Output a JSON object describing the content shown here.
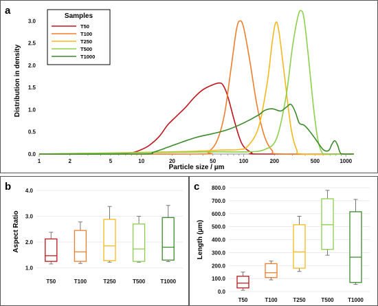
{
  "chart_data": [
    {
      "panel": "a",
      "type": "line",
      "xlabel": "Particle size / µm",
      "ylabel": "Distribution in density",
      "xscale": "log",
      "xlim": [
        1,
        1200
      ],
      "ylim": [
        0,
        3.3
      ],
      "x_ticks": [
        "1",
        "2",
        "5",
        "10",
        "20",
        "50",
        "100",
        "200",
        "500",
        "1000"
      ],
      "y_ticks": [
        "0.0",
        "0.5",
        "1.0",
        "1.5",
        "2.0",
        "2.5",
        "3.0"
      ],
      "legend": {
        "title": "Samples",
        "placement": "top-left"
      },
      "series": [
        {
          "name": "T50",
          "color": "#c0141c",
          "points": [
            [
              1,
              0
            ],
            [
              5,
              0
            ],
            [
              8,
              0.03
            ],
            [
              10,
              0.1
            ],
            [
              12,
              0.2
            ],
            [
              15,
              0.4
            ],
            [
              18,
              0.65
            ],
            [
              22,
              0.85
            ],
            [
              27,
              1.05
            ],
            [
              33,
              1.28
            ],
            [
              40,
              1.45
            ],
            [
              50,
              1.56
            ],
            [
              58,
              1.6
            ],
            [
              63,
              1.55
            ],
            [
              70,
              1.3
            ],
            [
              80,
              0.8
            ],
            [
              90,
              0.4
            ],
            [
              100,
              0.17
            ],
            [
              120,
              0.03
            ],
            [
              140,
              0
            ],
            [
              1200,
              0
            ]
          ]
        },
        {
          "name": "T100",
          "color": "#f07d2a",
          "points": [
            [
              1,
              0
            ],
            [
              35,
              0
            ],
            [
              45,
              0.05
            ],
            [
              55,
              0.3
            ],
            [
              65,
              0.9
            ],
            [
              75,
              1.9
            ],
            [
              85,
              2.8
            ],
            [
              92,
              3.0
            ],
            [
              100,
              2.85
            ],
            [
              115,
              2.1
            ],
            [
              135,
              1.1
            ],
            [
              160,
              0.4
            ],
            [
              190,
              0.08
            ],
            [
              230,
              0
            ],
            [
              1200,
              0
            ]
          ]
        },
        {
          "name": "T250",
          "color": "#f5b81c",
          "points": [
            [
              1,
              0
            ],
            [
              20,
              0.05
            ],
            [
              40,
              0.07
            ],
            [
              60,
              0.09
            ],
            [
              90,
              0.1
            ],
            [
              110,
              0.18
            ],
            [
              140,
              0.6
            ],
            [
              170,
              1.6
            ],
            [
              190,
              2.5
            ],
            [
              205,
              2.95
            ],
            [
              220,
              2.8
            ],
            [
              250,
              1.8
            ],
            [
              290,
              0.6
            ],
            [
              330,
              0.1
            ],
            [
              380,
              0
            ],
            [
              1200,
              0
            ]
          ]
        },
        {
          "name": "T500",
          "color": "#8cd04b",
          "points": [
            [
              1,
              0
            ],
            [
              20,
              0.04
            ],
            [
              60,
              0.05
            ],
            [
              110,
              0.05
            ],
            [
              160,
              0.1
            ],
            [
              210,
              0.35
            ],
            [
              260,
              1.3
            ],
            [
              300,
              2.4
            ],
            [
              340,
              3.1
            ],
            [
              365,
              3.23
            ],
            [
              390,
              3.05
            ],
            [
              430,
              2.2
            ],
            [
              480,
              1.1
            ],
            [
              530,
              0.35
            ],
            [
              580,
              0.05
            ],
            [
              650,
              0
            ],
            [
              1200,
              0
            ]
          ]
        },
        {
          "name": "T1000",
          "color": "#3a8a2a",
          "points": [
            [
              1,
              0
            ],
            [
              10,
              0
            ],
            [
              13,
              0.04
            ],
            [
              18,
              0.15
            ],
            [
              25,
              0.27
            ],
            [
              35,
              0.38
            ],
            [
              50,
              0.46
            ],
            [
              70,
              0.55
            ],
            [
              100,
              0.7
            ],
            [
              140,
              0.88
            ],
            [
              160,
              0.98
            ],
            [
              190,
              1.02
            ],
            [
              230,
              0.97
            ],
            [
              260,
              1.05
            ],
            [
              290,
              1.12
            ],
            [
              320,
              0.95
            ],
            [
              350,
              0.7
            ],
            [
              390,
              0.65
            ],
            [
              430,
              0.55
            ],
            [
              500,
              0.35
            ],
            [
              600,
              0.1
            ],
            [
              680,
              0.08
            ],
            [
              730,
              0.22
            ],
            [
              780,
              0.3
            ],
            [
              830,
              0.2
            ],
            [
              880,
              0.03
            ],
            [
              950,
              0
            ],
            [
              1200,
              0
            ]
          ]
        }
      ]
    },
    {
      "panel": "b",
      "type": "boxplot",
      "xlabel": "",
      "ylabel": "Aspect Ratio",
      "ylim": [
        0.8,
        4.0
      ],
      "y_ticks": [
        "1.0",
        "2.0",
        "3.0",
        "4.0"
      ],
      "categories": [
        "T50",
        "T100",
        "T250",
        "T500",
        "T1000"
      ],
      "boxes": [
        {
          "name": "T50",
          "color": "#c0141c",
          "min": 1.15,
          "q1": 1.25,
          "median": 1.47,
          "q3": 2.12,
          "max": 2.38
        },
        {
          "name": "T100",
          "color": "#f07d2a",
          "min": 1.17,
          "q1": 1.25,
          "median": 1.62,
          "q3": 2.45,
          "max": 2.78
        },
        {
          "name": "T250",
          "color": "#f5b81c",
          "min": 1.22,
          "q1": 1.28,
          "median": 1.85,
          "q3": 2.88,
          "max": 3.38
        },
        {
          "name": "T500",
          "color": "#8cd04b",
          "min": 1.22,
          "q1": 1.25,
          "median": 1.73,
          "q3": 2.7,
          "max": 3.0
        },
        {
          "name": "T1000",
          "color": "#3a8a2a",
          "min": 1.24,
          "q1": 1.3,
          "median": 1.8,
          "q3": 2.95,
          "max": 3.42
        }
      ]
    },
    {
      "panel": "c",
      "type": "boxplot",
      "xlabel": "",
      "ylabel": "Length (µm)",
      "ylim": [
        0,
        800
      ],
      "y_ticks": [
        "0.0",
        "100.0",
        "200.0",
        "300.0",
        "400.0",
        "500.0",
        "600.0",
        "700.0",
        "800.0"
      ],
      "categories": [
        "T50",
        "T100",
        "T250",
        "T500",
        "T1000"
      ],
      "boxes": [
        {
          "name": "T50",
          "color": "#c0141c",
          "min": 10,
          "q1": 28,
          "median": 65,
          "q3": 118,
          "max": 150
        },
        {
          "name": "T100",
          "color": "#f07d2a",
          "min": 90,
          "q1": 108,
          "median": 145,
          "q3": 215,
          "max": 235
        },
        {
          "name": "T250",
          "color": "#f5b81c",
          "min": 155,
          "q1": 180,
          "median": 305,
          "q3": 515,
          "max": 580
        },
        {
          "name": "T500",
          "color": "#8cd04b",
          "min": 280,
          "q1": 325,
          "median": 515,
          "q3": 715,
          "max": 780
        },
        {
          "name": "T1000",
          "color": "#3a8a2a",
          "min": 55,
          "q1": 70,
          "median": 265,
          "q3": 615,
          "max": 710
        }
      ]
    }
  ]
}
